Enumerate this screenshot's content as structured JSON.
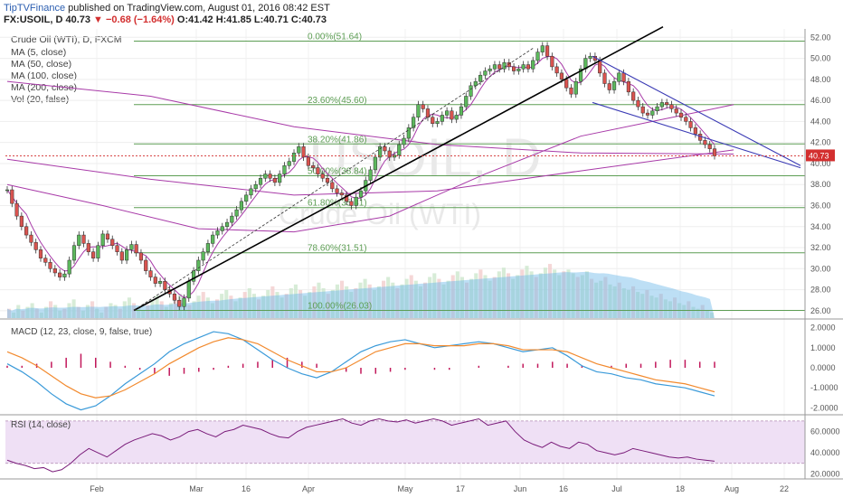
{
  "header": {
    "publisher": "TipTVFinance",
    "published_text": "published on TradingView.com, August 01, 2016 08:42 EST",
    "symbol": "FX:USOIL, D",
    "last": "40.73",
    "change": "▼ −0.68 (−1.64%)",
    "ohlc": "O:41.42  H:41.85  L:40.71  C:40.73"
  },
  "legend": {
    "title": "Crude Oil (WTI), D, FXCM",
    "items": [
      "MA (5, close)",
      "MA (50, close)",
      "MA (100, close)",
      "MA (200, close)",
      "Vol (20, false)"
    ]
  },
  "watermark": {
    "symbol": "USOIL, D",
    "name": "Crude Oil (WTI)"
  },
  "colors": {
    "up": "#5cb85c",
    "down": "#d9534f",
    "fib": "#5d9e54",
    "ma": "#a83aa8",
    "macd": "#3a9ad9",
    "signal": "#f28a2e",
    "hist": "#c2185b",
    "trend": "#000000",
    "channel": "#3b3bb5",
    "rsi": "#7a1c7a",
    "rsi_bg": "#efe0f5",
    "last_badge": "#d32f2f"
  },
  "chart_data": [
    {
      "type": "candlestick",
      "title": "Crude Oil (WTI), D, FXCM",
      "x_ticks": [
        "Feb",
        "Mar",
        "16",
        "Apr",
        "May",
        "17",
        "Jun",
        "16",
        "Jul",
        "18",
        "Aug",
        "22"
      ],
      "y_ticks": [
        "52.00",
        "50.00",
        "48.00",
        "46.00",
        "44.00",
        "42.00",
        "40.00",
        "38.00",
        "36.00",
        "34.00",
        "32.00",
        "30.00",
        "28.00",
        "26.00"
      ],
      "ylim": [
        25.3,
        52.8
      ],
      "last_price": "40.73",
      "fib_levels": [
        {
          "label": "0.00%(51.64)",
          "value": 51.64
        },
        {
          "label": "23.60%(45.60)",
          "value": 45.6
        },
        {
          "label": "38.20%(41.86)",
          "value": 41.86
        },
        {
          "label": "50.00%(38.84)",
          "value": 38.84
        },
        {
          "label": "61.80%(35.81)",
          "value": 35.81
        },
        {
          "label": "78.60%(31.51)",
          "value": 31.51
        },
        {
          "label": "100.00%(26.03)",
          "value": 26.03
        }
      ],
      "close_series": [
        37.5,
        36.2,
        35.0,
        34.0,
        33.2,
        32.5,
        31.8,
        31.0,
        30.6,
        30.0,
        29.6,
        29.2,
        29.5,
        30.8,
        32.2,
        33.2,
        32.4,
        31.6,
        31.0,
        32.2,
        33.3,
        32.8,
        32.2,
        31.6,
        30.8,
        31.8,
        32.3,
        31.5,
        30.8,
        29.8,
        29.2,
        28.6,
        28.8,
        28.0,
        27.6,
        27.0,
        26.4,
        27.2,
        28.8,
        29.8,
        30.8,
        31.6,
        32.4,
        33.2,
        33.6,
        34.0,
        34.4,
        35.0,
        35.6,
        36.4,
        37.0,
        37.6,
        38.0,
        38.6,
        39.0,
        38.6,
        38.2,
        39.0,
        39.8,
        40.2,
        41.0,
        41.6,
        40.6,
        39.8,
        39.6,
        39.0,
        38.6,
        38.2,
        37.6,
        37.2,
        37.0,
        36.4,
        36.0,
        36.8,
        37.4,
        38.4,
        39.4,
        40.6,
        41.6,
        41.2,
        40.6,
        40.8,
        41.8,
        42.4,
        43.4,
        44.4,
        45.6,
        45.2,
        44.4,
        43.8,
        44.0,
        44.6,
        45.0,
        44.2,
        44.6,
        45.4,
        46.4,
        47.4,
        47.8,
        48.4,
        48.8,
        49.0,
        49.4,
        49.0,
        49.6,
        49.2,
        48.8,
        49.0,
        49.4,
        49.0,
        49.8,
        50.6,
        51.2,
        50.2,
        49.2,
        48.6,
        48.0,
        47.2,
        46.6,
        47.8,
        49.0,
        50.0,
        50.2,
        49.8,
        48.6,
        47.6,
        47.0,
        47.8,
        48.6,
        47.8,
        46.8,
        46.0,
        45.4,
        44.8,
        44.6,
        45.0,
        45.4,
        45.8,
        45.6,
        45.2,
        44.8,
        44.4,
        44.0,
        43.4,
        42.8,
        42.2,
        41.8,
        41.4,
        40.73
      ],
      "ma_lines": [
        {
          "name": "MA (50, close)",
          "points": [
            [
              0,
              38.0
            ],
            [
              20,
              36.0
            ],
            [
              40,
              33.8
            ],
            [
              60,
              33.5
            ],
            [
              80,
              35.0
            ],
            [
              100,
              39.0
            ],
            [
              120,
              42.6
            ],
            [
              135,
              44.0
            ],
            [
              152,
              45.6
            ]
          ]
        },
        {
          "name": "MA (100, close)",
          "points": [
            [
              0,
              40.4
            ],
            [
              30,
              38.5
            ],
            [
              60,
              37.0
            ],
            [
              90,
              37.4
            ],
            [
              120,
              39.3
            ],
            [
              152,
              41.3
            ]
          ]
        },
        {
          "name": "MA (200, close)",
          "points": [
            [
              0,
              47.8
            ],
            [
              30,
              46.4
            ],
            [
              60,
              43.5
            ],
            [
              90,
              41.8
            ],
            [
              120,
              41.0
            ],
            [
              152,
              40.9
            ]
          ]
        }
      ]
    },
    {
      "type": "line",
      "title": "MACD (12, 23, close, 9, false, true)",
      "y_ticks": [
        "2.0000",
        "1.0000",
        "0.0000",
        "-1.0000",
        "-2.0000"
      ],
      "ylim": [
        -2.3,
        2.3
      ],
      "series": [
        {
          "name": "MACD",
          "values": [
            0.2,
            -0.2,
            -0.7,
            -1.3,
            -1.8,
            -2.1,
            -1.9,
            -1.4,
            -0.8,
            -0.3,
            0.2,
            0.8,
            1.2,
            1.5,
            1.8,
            1.7,
            1.4,
            0.9,
            0.4,
            0.0,
            -0.3,
            -0.5,
            -0.2,
            0.3,
            0.8,
            1.1,
            1.3,
            1.4,
            1.2,
            1.0,
            1.1,
            1.2,
            1.3,
            1.2,
            1.0,
            0.8,
            0.9,
            1.0,
            0.6,
            0.1,
            -0.2,
            -0.3,
            -0.5,
            -0.6,
            -0.8,
            -0.9,
            -1.0,
            -1.2,
            -1.4
          ]
        },
        {
          "name": "Signal",
          "values": [
            0.8,
            0.5,
            0.1,
            -0.4,
            -0.9,
            -1.3,
            -1.5,
            -1.4,
            -1.1,
            -0.7,
            -0.3,
            0.2,
            0.6,
            1.0,
            1.3,
            1.5,
            1.4,
            1.2,
            0.8,
            0.4,
            0.1,
            -0.2,
            -0.2,
            0.0,
            0.4,
            0.8,
            1.0,
            1.2,
            1.2,
            1.1,
            1.1,
            1.1,
            1.2,
            1.2,
            1.1,
            0.9,
            0.9,
            0.9,
            0.8,
            0.5,
            0.2,
            0.0,
            -0.2,
            -0.4,
            -0.6,
            -0.7,
            -0.8,
            -1.0,
            -1.2
          ]
        },
        {
          "name": "Histogram",
          "values": [
            0.1,
            0.1,
            0.2,
            0.3,
            0.5,
            0.7,
            0.5,
            0.3,
            0.1,
            -0.1,
            -0.3,
            -0.4,
            -0.3,
            -0.2,
            -0.1,
            0.1,
            0.2,
            0.3,
            0.4,
            0.5,
            0.3,
            0.2,
            0.0,
            -0.2,
            -0.3,
            -0.3,
            -0.2,
            -0.1,
            0.0,
            -0.1,
            -0.1,
            0.0,
            0.1,
            0.0,
            0.1,
            0.2,
            0.2,
            0.3,
            0.2,
            0.1,
            0.0,
            0.1,
            0.2,
            0.2,
            0.3,
            0.4,
            0.4,
            0.3,
            0.3
          ]
        }
      ]
    },
    {
      "type": "line",
      "title": "RSI (14, close)",
      "y_ticks": [
        "60.0000",
        "40.0000",
        "20.0000"
      ],
      "ylim": [
        17,
        75
      ],
      "bands": [
        30,
        70
      ],
      "series": [
        {
          "name": "RSI",
          "values": [
            33,
            30,
            28,
            25,
            26,
            22,
            24,
            30,
            38,
            44,
            40,
            36,
            42,
            48,
            52,
            55,
            58,
            56,
            52,
            55,
            60,
            62,
            58,
            55,
            60,
            62,
            66,
            64,
            62,
            58,
            55,
            54,
            60,
            64,
            66,
            68,
            70,
            72,
            68,
            66,
            70,
            72,
            70,
            69,
            71,
            68,
            70,
            72,
            70,
            66,
            68,
            70,
            72,
            66,
            68,
            70,
            60,
            52,
            48,
            45,
            50,
            46,
            44,
            50,
            48,
            42,
            40,
            38,
            40,
            44,
            42,
            40,
            38,
            36,
            35,
            36,
            34,
            33,
            32
          ]
        }
      ]
    },
    {
      "type": "bar",
      "title": "Vol (20, false)",
      "values": [
        5,
        3,
        7,
        4,
        6,
        8,
        5,
        3,
        6,
        9,
        7,
        4,
        5,
        8,
        10,
        6,
        4,
        7,
        9,
        5,
        3,
        6,
        8,
        7,
        5,
        9,
        11,
        8,
        6,
        4,
        7,
        10,
        12,
        9,
        6,
        8,
        11,
        13,
        10,
        7,
        9,
        12,
        14,
        11,
        8,
        10,
        13,
        15,
        12,
        9,
        11,
        14,
        16,
        13,
        10,
        12,
        15,
        17,
        14,
        11,
        13,
        16,
        18,
        15,
        12,
        14,
        17,
        19,
        16,
        13,
        15,
        18,
        20,
        17,
        14,
        16,
        19,
        21,
        18,
        15,
        17,
        20,
        22,
        19,
        16,
        18,
        21,
        23,
        20,
        17,
        19,
        22,
        24,
        21,
        18,
        20,
        23,
        25,
        22,
        19,
        21,
        24,
        26,
        23,
        20,
        22,
        25,
        27,
        24,
        21,
        23,
        26,
        28,
        25,
        22,
        24,
        27,
        29,
        26,
        23,
        25,
        26,
        24,
        22,
        23,
        25,
        21,
        19,
        20,
        22,
        18,
        17,
        19,
        16,
        15,
        17,
        14,
        13,
        15,
        12,
        11,
        13,
        10,
        9,
        11,
        8,
        7,
        9,
        6,
        5,
        7,
        4,
        3
      ]
    }
  ]
}
